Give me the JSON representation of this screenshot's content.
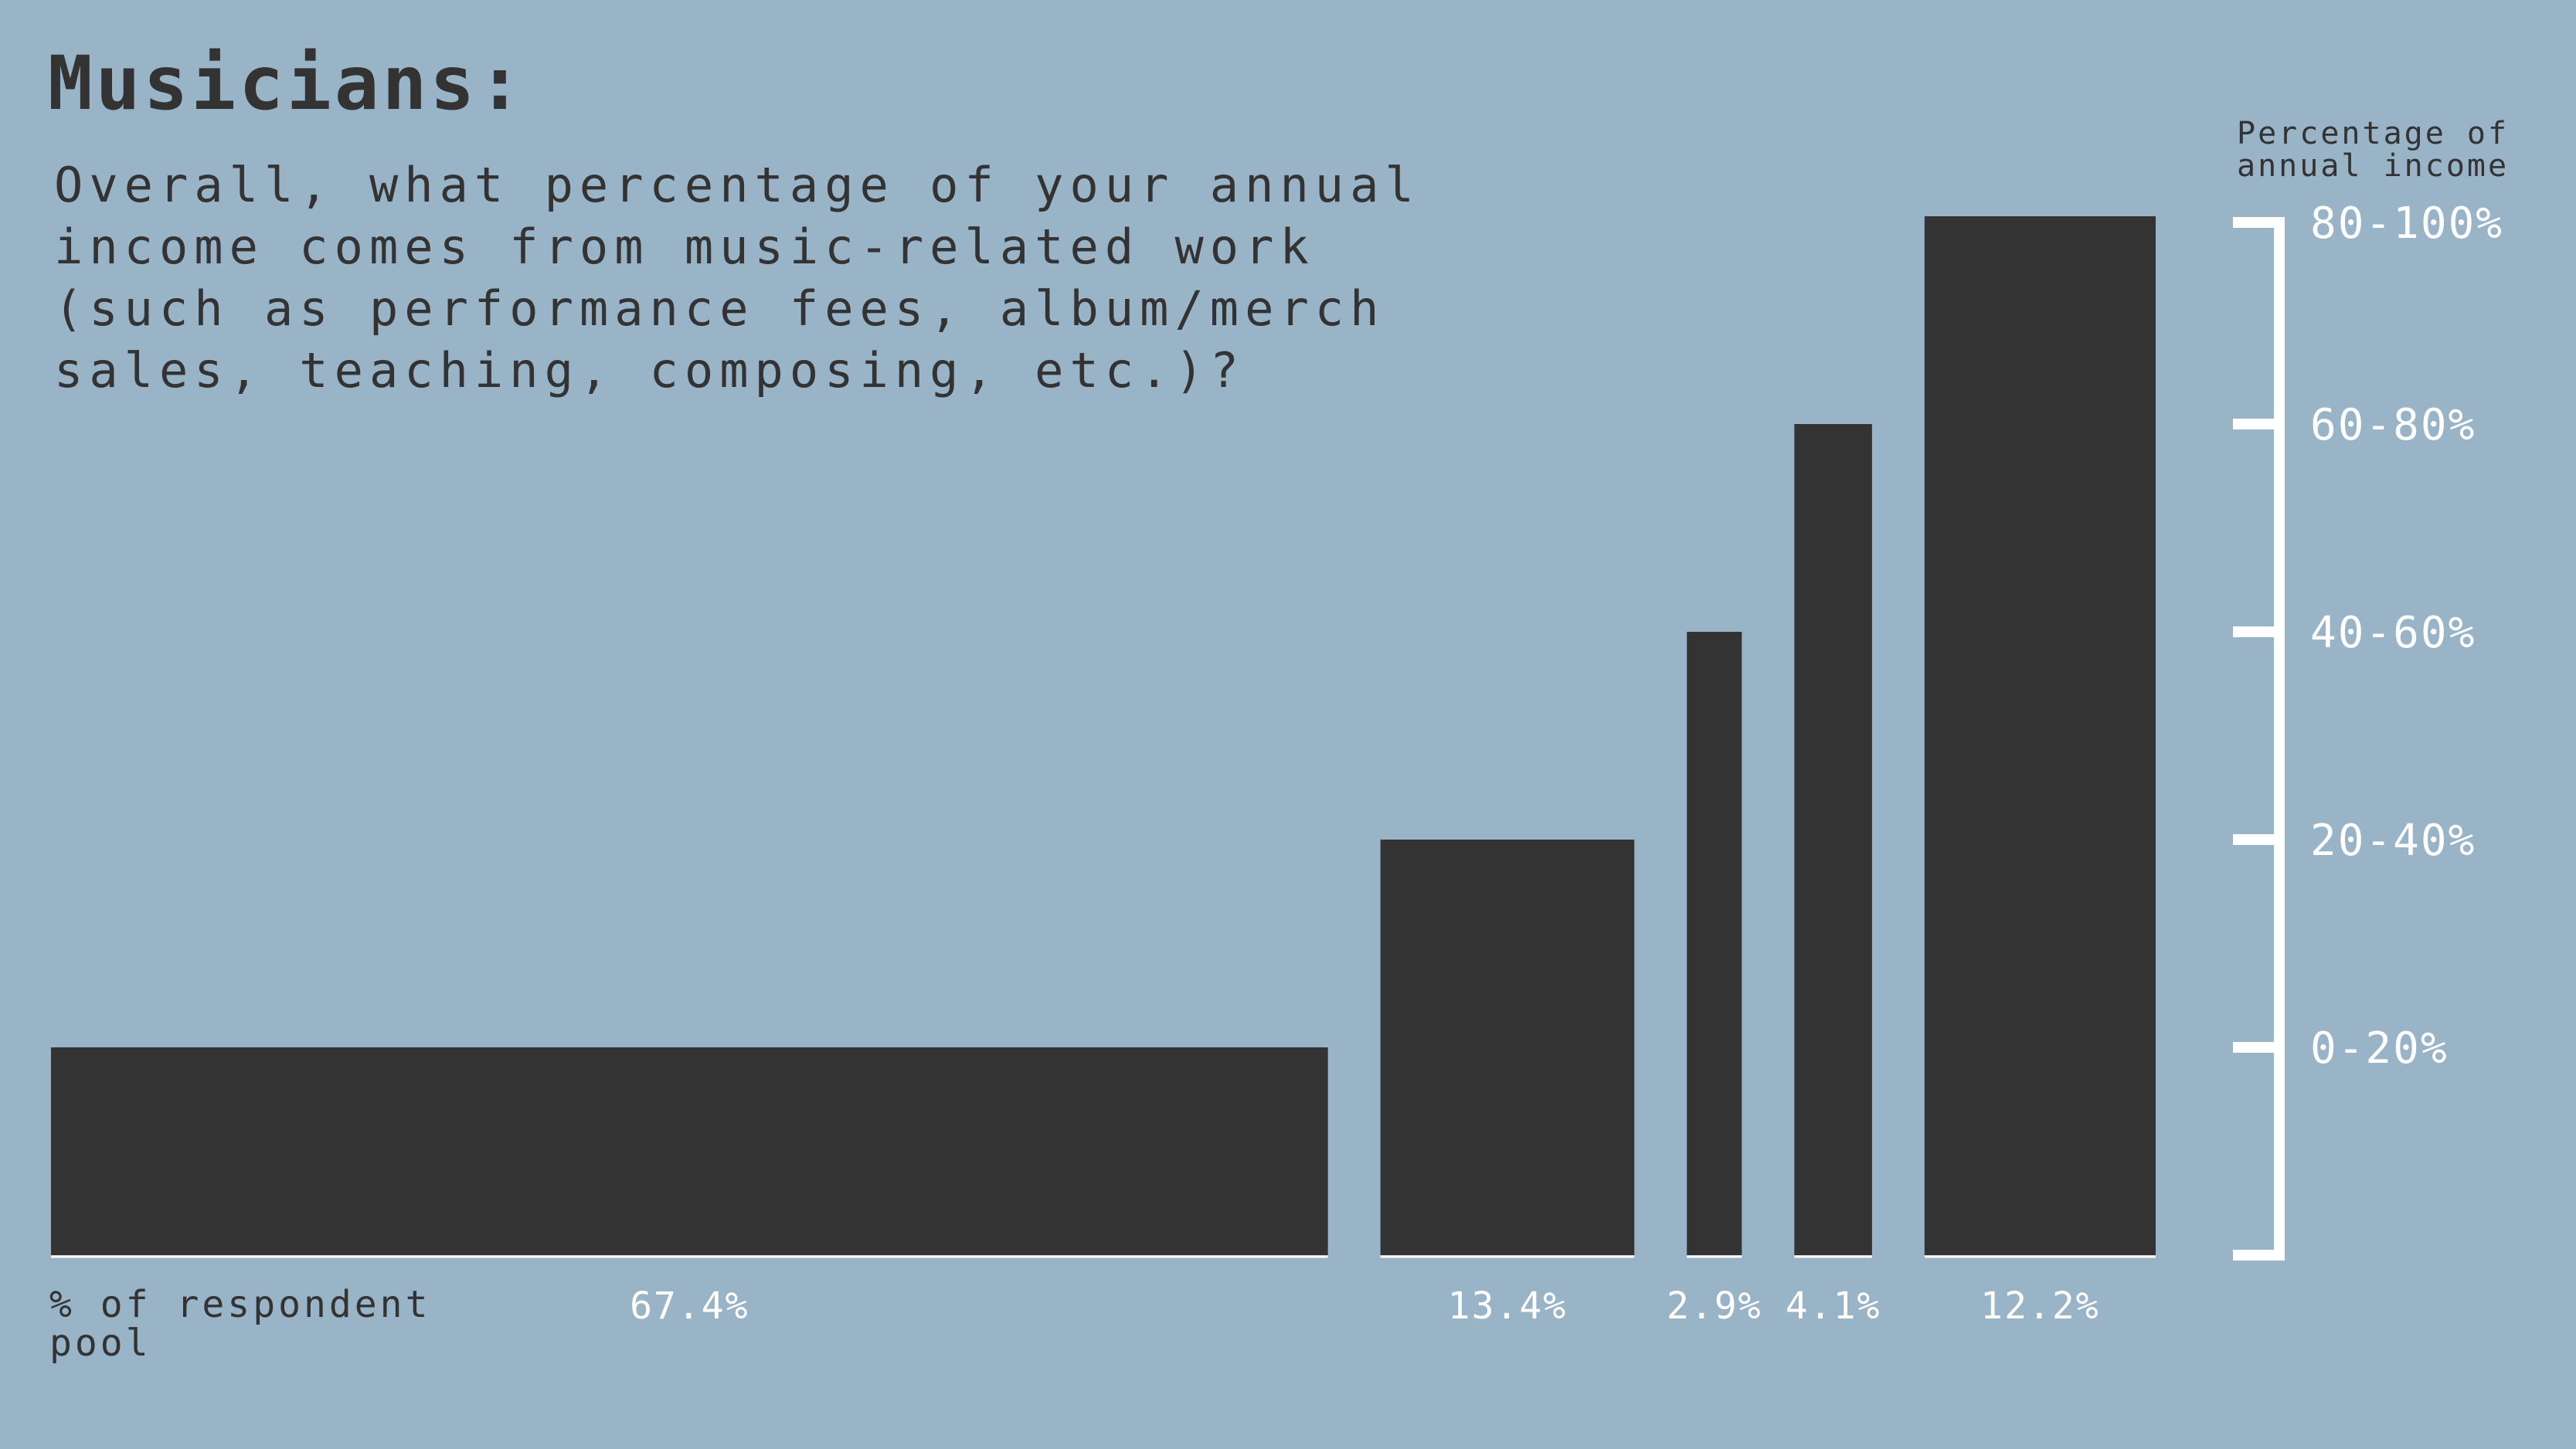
{
  "chart_data": {
    "type": "bar",
    "title": "Musicians:",
    "subtitle": "Overall, what percentage of your annual income comes from music-related work (such as performance fees, album/merch sales, teaching, composing, etc.)?",
    "ylabel": "Percentage of annual income",
    "xlabel": "% of respondent pool",
    "categories": [
      "0-20%",
      "20-40%",
      "40-60%",
      "60-80%",
      "80-100%"
    ],
    "y_ticks": [
      "0-20%",
      "20-40%",
      "40-60%",
      "60-80%",
      "80-100%"
    ],
    "values": [
      67.4,
      13.4,
      2.9,
      4.1,
      12.2
    ],
    "value_labels": [
      "67.4%",
      "13.4%",
      "2.9%",
      "4.1%",
      "12.2%"
    ],
    "ylim": [
      0,
      100
    ],
    "grid": false,
    "legend": "none",
    "colors": {
      "background": "#99b3c7",
      "bar": "#333333",
      "axis": "#ffffff",
      "text": "#333333"
    }
  }
}
